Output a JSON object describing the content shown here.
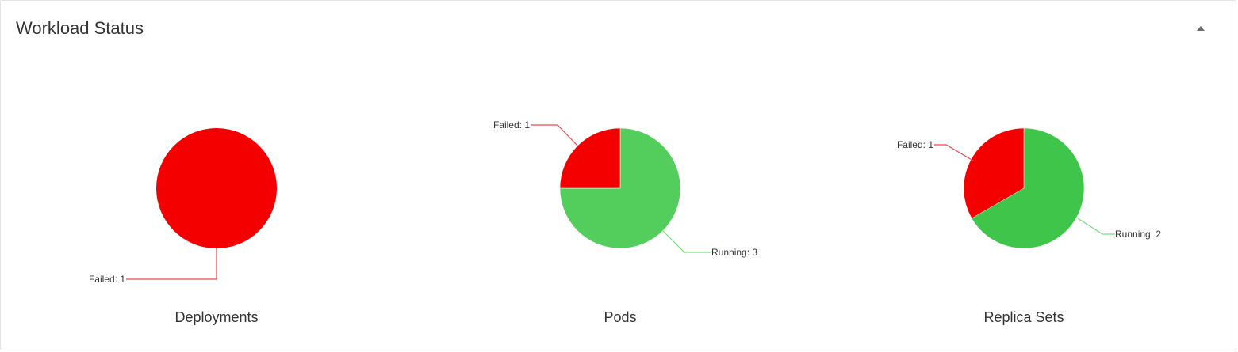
{
  "header": {
    "title": "Workload Status",
    "collapse_icon": "caret-up-icon"
  },
  "colors": {
    "failed": "#f50000",
    "running": "#53cd5c",
    "running_alt": "#3fc64a",
    "failed_line": "#e9484b",
    "running_line": "#7ad981"
  },
  "chart_data": [
    {
      "type": "pie",
      "title": "Deployments",
      "slices": [
        {
          "label": "Failed",
          "value": 1,
          "text": "Failed: 1",
          "color": "#f50000"
        }
      ]
    },
    {
      "type": "pie",
      "title": "Pods",
      "slices": [
        {
          "label": "Running",
          "value": 3,
          "text": "Running: 3",
          "color": "#53cd5c"
        },
        {
          "label": "Failed",
          "value": 1,
          "text": "Failed: 1",
          "color": "#f50000"
        }
      ]
    },
    {
      "type": "pie",
      "title": "Replica Sets",
      "slices": [
        {
          "label": "Running",
          "value": 2,
          "text": "Running: 2",
          "color": "#3fc64a"
        },
        {
          "label": "Failed",
          "value": 1,
          "text": "Failed: 1",
          "color": "#f50000"
        }
      ]
    }
  ]
}
